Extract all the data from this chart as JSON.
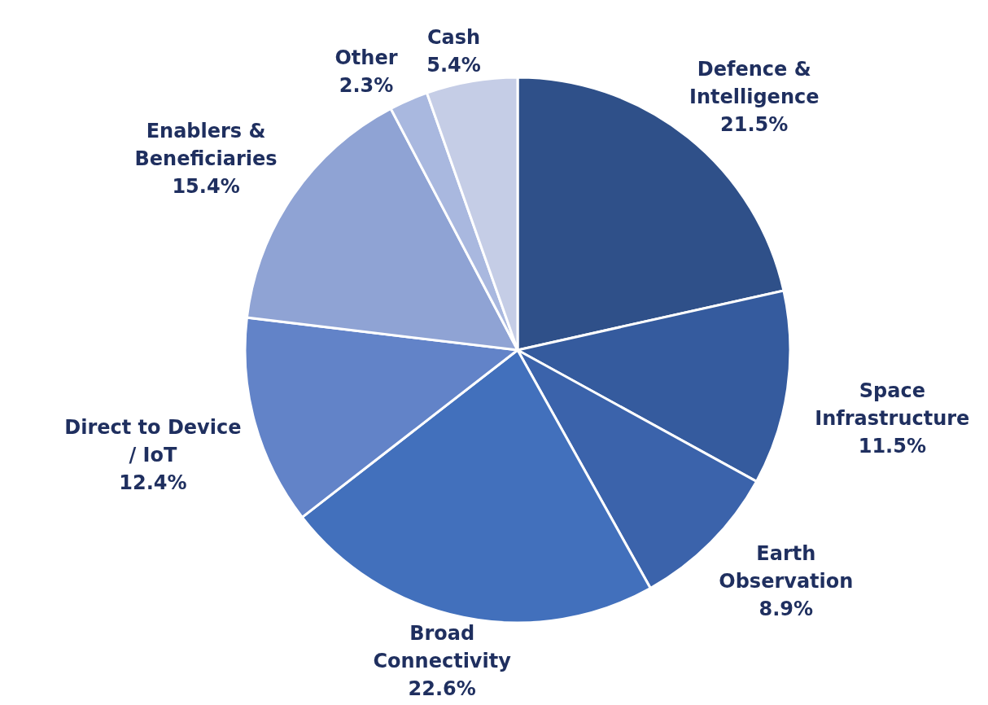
{
  "chart_data": {
    "type": "pie",
    "categories": [
      "Defence & Intelligence",
      "Space Infrastructure",
      "Earth Observation",
      "Broad Connectivity",
      "Direct to Device / IoT",
      "Enablers & Beneficiaries",
      "Other",
      "Cash"
    ],
    "values": [
      21.5,
      11.5,
      8.9,
      22.6,
      12.4,
      15.4,
      2.3,
      5.4
    ],
    "value_labels": [
      "21.5%",
      "11.5%",
      "8.9%",
      "22.6%",
      "12.4%",
      "15.4%",
      "2.3%",
      "5.4%"
    ],
    "colors": [
      "#2f5089",
      "#355b9e",
      "#3b63ab",
      "#4270bc",
      "#6283c8",
      "#8fa3d4",
      "#a9b8df",
      "#c5cde6"
    ],
    "legend": false
  }
}
